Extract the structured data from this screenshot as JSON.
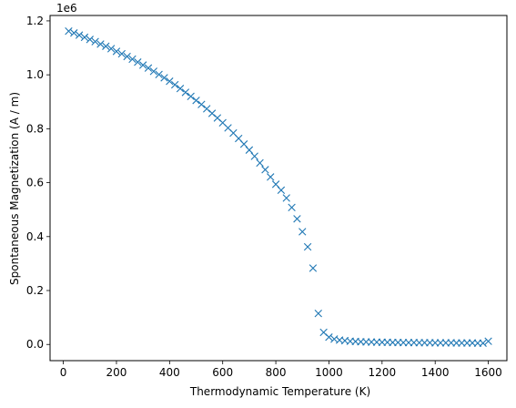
{
  "chart_data": {
    "type": "scatter",
    "marker": "x",
    "color": "#1f77b4",
    "title": "",
    "xlabel": "Thermodynamic Temperature (K)",
    "ylabel": "Spontaneous Magnetization (A / m)",
    "y_offset_label": "1e6",
    "xlim": [
      -50,
      1670
    ],
    "ylim": [
      -60000,
      1220000
    ],
    "xticks": [
      0,
      200,
      400,
      600,
      800,
      1000,
      1200,
      1400,
      1600
    ],
    "xtick_labels": [
      "0",
      "200",
      "400",
      "600",
      "800",
      "1000",
      "1200",
      "1400",
      "1600"
    ],
    "yticks": [
      0,
      200000,
      400000,
      600000,
      800000,
      1000000,
      1200000
    ],
    "ytick_labels": [
      "0.0",
      "0.2",
      "0.4",
      "0.6",
      "0.8",
      "1.0",
      "1.2"
    ],
    "grid": false,
    "series": [
      {
        "x": [
          20,
          40,
          60,
          80,
          100,
          120,
          140,
          160,
          180,
          200,
          220,
          240,
          260,
          280,
          300,
          320,
          340,
          360,
          380,
          400,
          420,
          440,
          460,
          480,
          500,
          520,
          540,
          560,
          580,
          600,
          620,
          640,
          660,
          680,
          700,
          720,
          740,
          760,
          780,
          800,
          820,
          840,
          860,
          880,
          900,
          920,
          940,
          960,
          980,
          1000,
          1020,
          1040,
          1060,
          1080,
          1100,
          1120,
          1140,
          1160,
          1180,
          1200,
          1220,
          1240,
          1260,
          1280,
          1300,
          1320,
          1340,
          1360,
          1380,
          1400,
          1420,
          1440,
          1460,
          1480,
          1500,
          1520,
          1540,
          1560,
          1580,
          1600
        ],
        "y": [
          1162000,
          1155000,
          1147000,
          1139000,
          1131000,
          1123000,
          1114000,
          1106000,
          1097000,
          1087000,
          1078000,
          1068000,
          1058000,
          1047000,
          1036000,
          1025000,
          1013000,
          1001000,
          989000,
          976000,
          963000,
          949000,
          935000,
          920000,
          905000,
          890000,
          874000,
          857000,
          840000,
          822000,
          803000,
          784000,
          764000,
          743000,
          721000,
          698000,
          673000,
          648000,
          621000,
          594000,
          572000,
          543000,
          508000,
          466000,
          418000,
          362000,
          283000,
          115000,
          45000,
          27000,
          20000,
          16000,
          14000,
          12000,
          11000,
          10000,
          9500,
          9000,
          8500,
          8000,
          8000,
          7500,
          7500,
          7000,
          7000,
          7000,
          6500,
          6500,
          6500,
          6000,
          6000,
          6000,
          6000,
          5500,
          5500,
          5500,
          5500,
          5000,
          5000,
          12000
        ]
      }
    ]
  }
}
